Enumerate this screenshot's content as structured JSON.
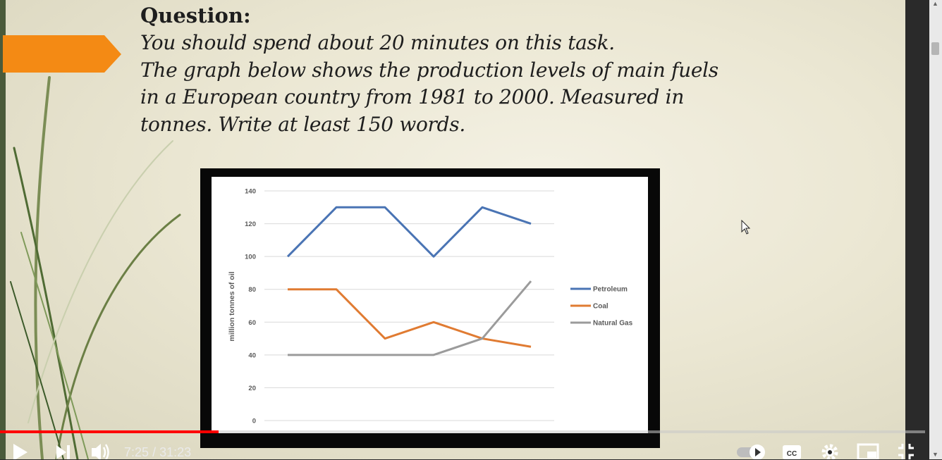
{
  "question": {
    "heading": "Question:",
    "lines": [
      "You should spend about 20 minutes on this task.",
      "The graph below shows the production levels of main fuels",
      "in a European country from 1981 to 2000. Measured in",
      "tonnes. Write at least 150 words."
    ]
  },
  "chart_data": {
    "type": "line",
    "title": "",
    "xlabel": "",
    "ylabel": "million tonnes of oil",
    "ylim": [
      0,
      140
    ],
    "yticks": [
      0,
      20,
      40,
      60,
      80,
      100,
      120,
      140
    ],
    "x": [
      1,
      2,
      3,
      4,
      5,
      6
    ],
    "grid": true,
    "legend_position": "right",
    "series": [
      {
        "name": "Petroleum",
        "color": "#4a74b4",
        "values": [
          100,
          130,
          130,
          100,
          130,
          120
        ]
      },
      {
        "name": "Coal",
        "color": "#e07b32",
        "values": [
          80,
          80,
          50,
          60,
          50,
          45
        ]
      },
      {
        "name": "Natural Gas",
        "color": "#9b9b9b",
        "values": [
          40,
          40,
          40,
          40,
          50,
          85
        ]
      }
    ]
  },
  "player": {
    "current_time": "7:25",
    "total_time": "31:23",
    "progress_fraction": 0.2366,
    "accent_color": "#ff0000",
    "icons": [
      "play-icon",
      "next-icon",
      "volume-icon",
      "autoplay-toggle",
      "cc-icon",
      "settings-icon",
      "miniplayer-icon",
      "exit-fullscreen-icon"
    ]
  }
}
